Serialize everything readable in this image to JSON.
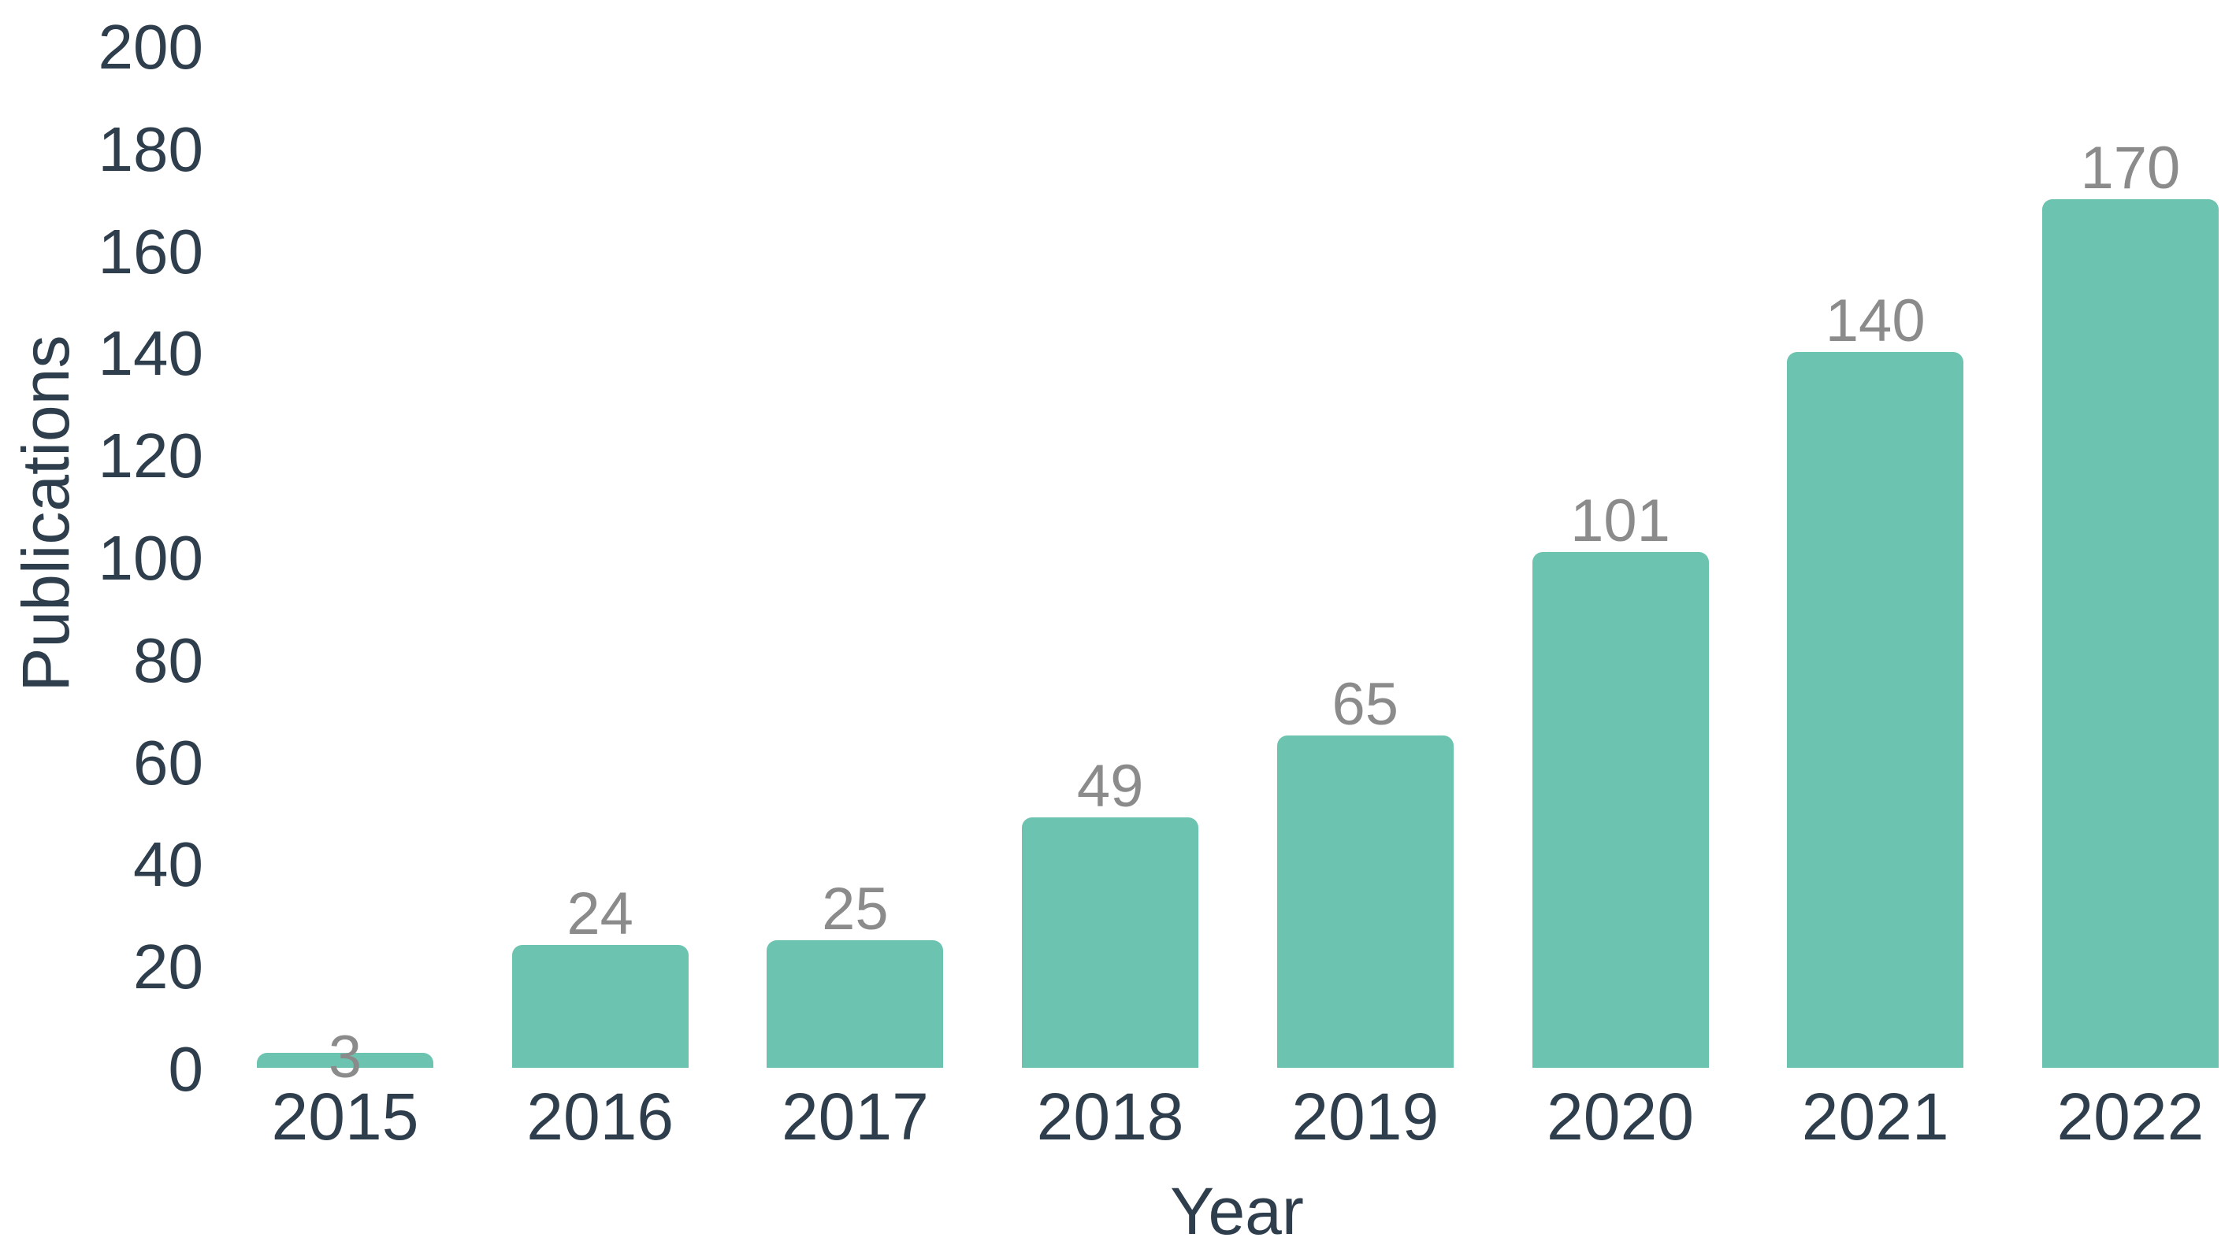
{
  "chart_data": {
    "type": "bar",
    "title": "",
    "categories": [
      "2015",
      "2016",
      "2017",
      "2018",
      "2019",
      "2020",
      "2021",
      "2022"
    ],
    "values": [
      3,
      24,
      25,
      49,
      65,
      101,
      140,
      170
    ],
    "value_labels": [
      "3",
      "24",
      "25",
      "49",
      "65",
      "101",
      "140",
      "170"
    ],
    "xlabel": "Year",
    "ylabel": "Publications",
    "ylim": [
      0,
      200
    ],
    "ytick_step": 20,
    "yticks": [
      0,
      20,
      40,
      60,
      80,
      100,
      120,
      140,
      160,
      180,
      200
    ],
    "grid": false,
    "legend": "none",
    "colors": {
      "bar": "#6cc4b0",
      "value_label": "#8b8b8b",
      "axis_text": "#2f3e4c",
      "background": "#ffffff"
    }
  }
}
